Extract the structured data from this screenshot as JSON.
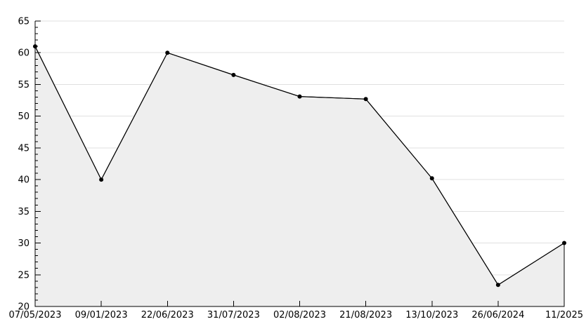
{
  "chart_data": {
    "type": "area",
    "title": "",
    "xlabel": "",
    "ylabel": "",
    "categories": [
      "07/05/2023",
      "09/01/2023",
      "22/06/2023",
      "31/07/2023",
      "02/08/2023",
      "21/08/2023",
      "13/10/2023",
      "26/06/2024",
      "11/2025"
    ],
    "series": [
      {
        "name": "value",
        "values": [
          61.0,
          40.0,
          60.0,
          56.5,
          53.1,
          52.7,
          40.2,
          23.4,
          30.0
        ]
      }
    ],
    "ylim": [
      20,
      65
    ],
    "ytick_step": 5,
    "yminor_step": 1,
    "ytick_labels": [
      "20",
      "25",
      "30",
      "35",
      "40",
      "45",
      "50",
      "55",
      "60",
      "65"
    ],
    "grid": "horizontal-major",
    "legend_position": "none",
    "marker": "filled-circle",
    "colors": {
      "background": "#ffffff",
      "line": "#000000",
      "marker": "#000000",
      "area_fill": "#eeeeee",
      "grid": "#e0e0e0",
      "axis": "#000000",
      "label": "#000000"
    }
  }
}
